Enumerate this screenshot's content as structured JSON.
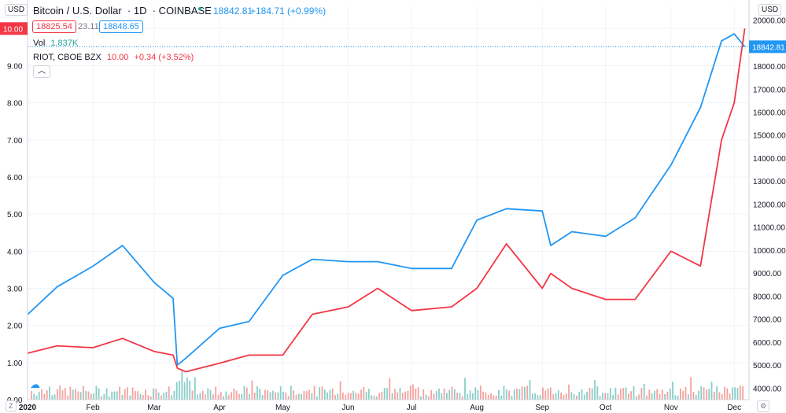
{
  "header": {
    "symbol_title": "Bitcoin / U.S. Dollar",
    "interval": "1D",
    "exchange": "COINBASE",
    "last_price": "18842.81",
    "change": "+184.71 (+0.99%)",
    "bid": "18825.54",
    "spread": "23.11",
    "ask": "18848.65",
    "vol_label": "Vol",
    "vol_value": "1.837K",
    "compare_symbol": "RIOT, CBOE BZX",
    "compare_price": "10.00",
    "compare_change": "+0.34 (+3.52%)"
  },
  "scale_labels": {
    "left": "USD",
    "right": "USD"
  },
  "colors": {
    "btc": "#2196f3",
    "riot": "#f23645",
    "vol_up": "#26a69a",
    "vol_down": "#ef5350",
    "grid": "#f0f3fa"
  },
  "chart_data": {
    "type": "line",
    "x": [
      "2020-01-01",
      "2020-01-15",
      "2020-02-01",
      "2020-02-15",
      "2020-03-01",
      "2020-03-10",
      "2020-03-12",
      "2020-03-16",
      "2020-04-01",
      "2020-04-15",
      "2020-05-01",
      "2020-05-15",
      "2020-06-01",
      "2020-06-15",
      "2020-07-01",
      "2020-07-20",
      "2020-08-01",
      "2020-08-15",
      "2020-09-01",
      "2020-09-05",
      "2020-09-15",
      "2020-10-01",
      "2020-10-15",
      "2020-11-01",
      "2020-11-15",
      "2020-11-25",
      "2020-12-01",
      "2020-12-06"
    ],
    "series": [
      {
        "name": "Bitcoin / U.S. Dollar",
        "axis": "right",
        "values": [
          7200,
          8400,
          9300,
          10200,
          8600,
          7900,
          5000,
          5300,
          6600,
          6900,
          8900,
          9600,
          9500,
          9500,
          9200,
          9200,
          11300,
          11800,
          11700,
          10200,
          10800,
          10600,
          11400,
          13700,
          16200,
          19100,
          19400,
          18842.81
        ]
      },
      {
        "name": "RIOT, CBOE BZX",
        "axis": "left",
        "values": [
          1.25,
          1.45,
          1.4,
          1.65,
          1.3,
          1.2,
          0.85,
          0.75,
          0.98,
          1.2,
          1.2,
          2.3,
          2.5,
          3.0,
          2.4,
          2.5,
          3.0,
          4.2,
          3.0,
          3.4,
          3.0,
          2.7,
          2.7,
          4.0,
          3.6,
          7.0,
          8.0,
          10.0
        ]
      }
    ],
    "y_left": {
      "min": 0,
      "max": 10.6,
      "ticks": [
        "0.00",
        "1.00",
        "2.00",
        "3.00",
        "4.00",
        "5.00",
        "6.00",
        "7.00",
        "8.00",
        "9.00",
        "10.00"
      ]
    },
    "y_right": {
      "min": 3500,
      "max": 20600,
      "ticks": [
        "4000.00",
        "5000.00",
        "6000.00",
        "7000.00",
        "8000.00",
        "9000.00",
        "10000.00",
        "11000.00",
        "12000.00",
        "13000.00",
        "14000.00",
        "15000.00",
        "16000.00",
        "17000.00",
        "18000.00",
        "19000.00",
        "20000.00"
      ]
    },
    "x_ticks": [
      "2020",
      "Feb",
      "Mar",
      "Apr",
      "May",
      "Jun",
      "Jul",
      "Aug",
      "Sep",
      "Oct",
      "Nov",
      "Dec"
    ],
    "price_labels": {
      "left": "10.00",
      "right": "18842.81"
    },
    "volume": {
      "label": "Vol",
      "last": "1.837K"
    },
    "grid": true
  }
}
